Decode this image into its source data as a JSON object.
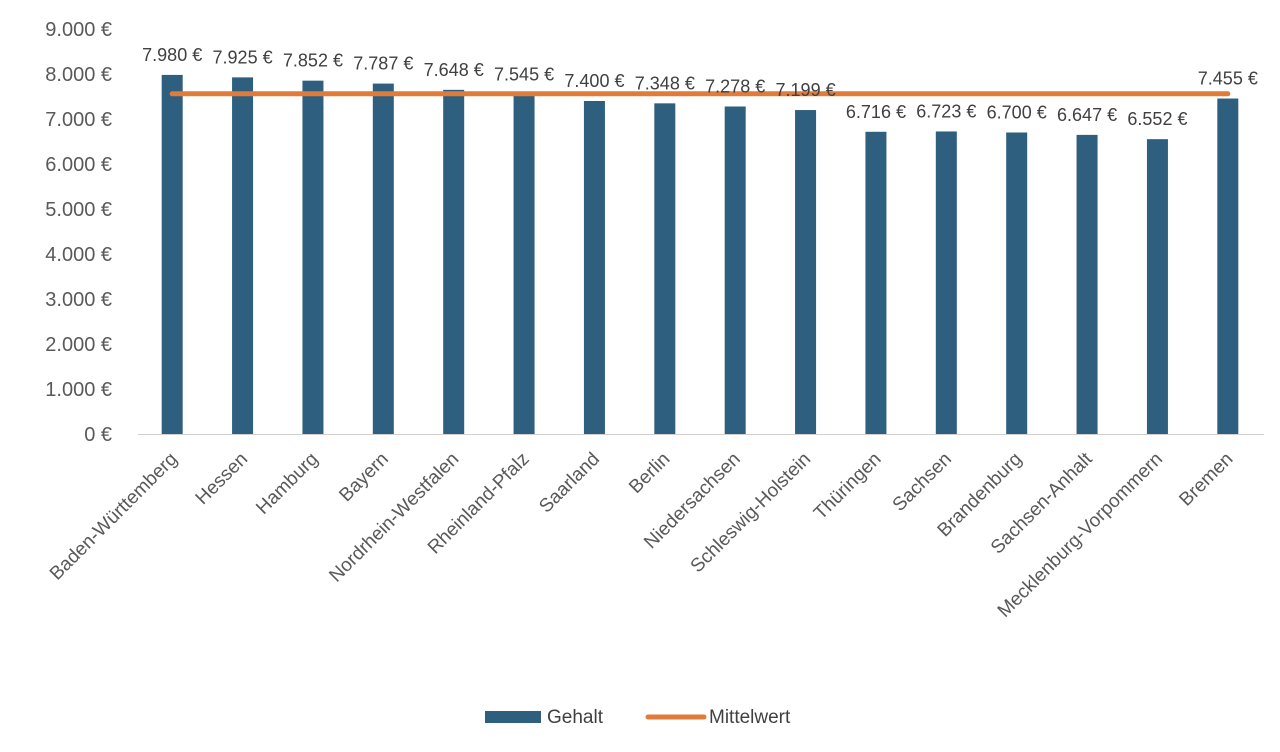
{
  "chart_data": {
    "type": "bar",
    "categories": [
      "Baden-Württemberg",
      "Hessen",
      "Hamburg",
      "Bayern",
      "Nordrhein-Westfalen",
      "Rheinland-Pfalz",
      "Saarland",
      "Berlin",
      "Niedersachsen",
      "Schleswig-Holstein",
      "Thüringen",
      "Sachsen",
      "Brandenburg",
      "Sachsen-Anhalt",
      "Mecklenburg-Vorpommern",
      "Bremen"
    ],
    "series": [
      {
        "name": "Gehalt",
        "type": "bar",
        "color": "#2e5f7f",
        "values": [
          7980,
          7925,
          7852,
          7787,
          7648,
          7545,
          7400,
          7348,
          7278,
          7199,
          6716,
          6723,
          6700,
          6647,
          6552,
          7455
        ],
        "data_labels": [
          "7.980 €",
          "7.925 €",
          "7.852 €",
          "7.787 €",
          "7.648 €",
          "7.545 €",
          "7.400 €",
          "7.348 €",
          "7.278 €",
          "7.199 €",
          "6.716 €",
          "6.723 €",
          "6.700 €",
          "6.647 €",
          "6.552 €",
          "7.455 €"
        ]
      },
      {
        "name": "Mittelwert",
        "type": "line",
        "color": "#e07b39",
        "value": 7560
      }
    ],
    "yticks": [
      "0 €",
      "1.000 €",
      "2.000 €",
      "3.000 €",
      "4.000 €",
      "5.000 €",
      "6.000 €",
      "7.000 €",
      "8.000 €",
      "9.000 €"
    ],
    "ylim": [
      0,
      9000
    ],
    "grid": false,
    "legend": "bottom",
    "title": "",
    "xlabel": "",
    "ylabel": ""
  }
}
